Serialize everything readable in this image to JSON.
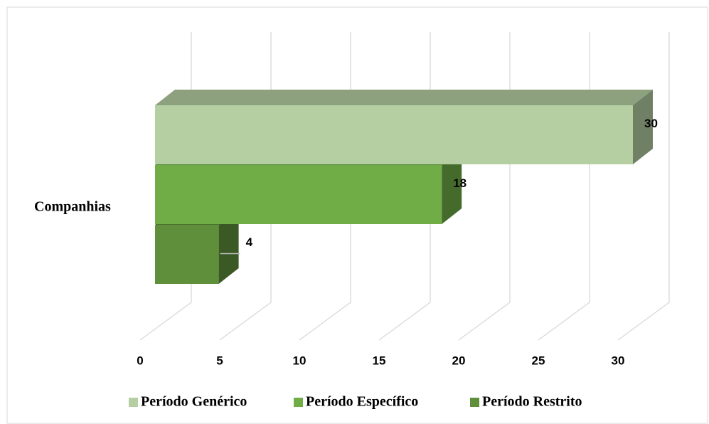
{
  "chart_data": {
    "type": "bar",
    "orientation": "horizontal",
    "three_d": true,
    "categories": [
      "Companhias"
    ],
    "series": [
      {
        "name": "Período Genérico",
        "color": "#b5cfa3",
        "values": [
          30
        ]
      },
      {
        "name": "Período Específico",
        "color": "#70ad47",
        "values": [
          18
        ]
      },
      {
        "name": "Período Restrito",
        "color": "#5f8f3a",
        "values": [
          4
        ]
      }
    ],
    "xlim": [
      0,
      30
    ],
    "xticks": [
      0,
      5,
      10,
      15,
      20,
      25,
      30
    ],
    "grid": true,
    "legend": "bottom"
  }
}
